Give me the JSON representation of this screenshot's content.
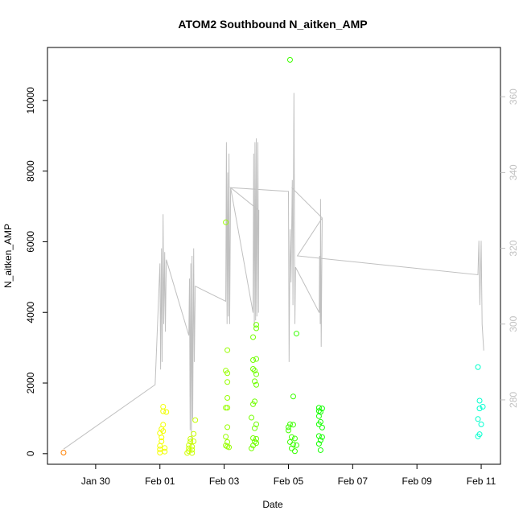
{
  "chart_data": {
    "type": "scatter",
    "title": "ATOM2 Southbound N_aitken_AMP",
    "xlabel": "Date",
    "ylabel": "N_aitken_AMP",
    "x_tick_labels": [
      "Jan 30",
      "Feb 01",
      "Feb 03",
      "Feb 05",
      "Feb 07",
      "Feb 09",
      "Feb 11"
    ],
    "x_tick_values": [
      30,
      32,
      34,
      36,
      38,
      40,
      42
    ],
    "xlim": [
      28.5,
      42.6
    ],
    "y_ticks": [
      0,
      2000,
      4000,
      6000,
      8000,
      10000
    ],
    "ylim": [
      -300,
      11500
    ],
    "y2_ticks": [
      280,
      300,
      320,
      340,
      360
    ],
    "y2lim": [
      263,
      373
    ],
    "y2_color": "#c0c0c0",
    "series": [
      {
        "marker": "open-circle",
        "color_scale": "rainbow by time",
        "points": [
          {
            "x": 29.0,
            "y": 30,
            "c": "#ff8000"
          },
          {
            "x": 32.0,
            "y": 30
          },
          {
            "x": 32.0,
            "y": 120
          },
          {
            "x": 32.0,
            "y": 220
          },
          {
            "x": 32.05,
            "y": 350
          },
          {
            "x": 32.05,
            "y": 460
          },
          {
            "x": 32.0,
            "y": 580
          },
          {
            "x": 32.1,
            "y": 640
          },
          {
            "x": 32.05,
            "y": 700
          },
          {
            "x": 32.1,
            "y": 820
          },
          {
            "x": 32.1,
            "y": 1200
          },
          {
            "x": 32.1,
            "y": 1330
          },
          {
            "x": 32.15,
            "y": 60
          },
          {
            "x": 32.15,
            "y": 160
          },
          {
            "x": 32.2,
            "y": 1180
          },
          {
            "x": 32.85,
            "y": 20
          },
          {
            "x": 32.9,
            "y": 70
          },
          {
            "x": 32.9,
            "y": 150
          },
          {
            "x": 32.9,
            "y": 240
          },
          {
            "x": 32.95,
            "y": 340
          },
          {
            "x": 32.95,
            "y": 420
          },
          {
            "x": 33.0,
            "y": 20
          },
          {
            "x": 33.0,
            "y": 110
          },
          {
            "x": 33.0,
            "y": 200
          },
          {
            "x": 33.05,
            "y": 350
          },
          {
            "x": 33.05,
            "y": 560
          },
          {
            "x": 33.1,
            "y": 950
          },
          {
            "x": 34.05,
            "y": 6550
          },
          {
            "x": 34.1,
            "y": 2930
          },
          {
            "x": 34.05,
            "y": 2350
          },
          {
            "x": 34.1,
            "y": 2280
          },
          {
            "x": 34.1,
            "y": 2030
          },
          {
            "x": 34.1,
            "y": 1580
          },
          {
            "x": 34.05,
            "y": 1300
          },
          {
            "x": 34.1,
            "y": 1300
          },
          {
            "x": 34.1,
            "y": 750
          },
          {
            "x": 34.05,
            "y": 480
          },
          {
            "x": 34.1,
            "y": 330
          },
          {
            "x": 34.05,
            "y": 230
          },
          {
            "x": 34.1,
            "y": 200
          },
          {
            "x": 34.15,
            "y": 180
          },
          {
            "x": 34.9,
            "y": 3300
          },
          {
            "x": 35.0,
            "y": 3650
          },
          {
            "x": 35.0,
            "y": 3550
          },
          {
            "x": 34.9,
            "y": 2650
          },
          {
            "x": 35.0,
            "y": 2680
          },
          {
            "x": 34.9,
            "y": 2400
          },
          {
            "x": 34.95,
            "y": 2350
          },
          {
            "x": 35.0,
            "y": 2250
          },
          {
            "x": 34.95,
            "y": 2050
          },
          {
            "x": 35.0,
            "y": 1950
          },
          {
            "x": 34.95,
            "y": 1480
          },
          {
            "x": 34.9,
            "y": 1400
          },
          {
            "x": 34.85,
            "y": 1020
          },
          {
            "x": 35.0,
            "y": 830
          },
          {
            "x": 34.95,
            "y": 720
          },
          {
            "x": 34.9,
            "y": 440
          },
          {
            "x": 35.0,
            "y": 420
          },
          {
            "x": 34.95,
            "y": 340
          },
          {
            "x": 35.0,
            "y": 300
          },
          {
            "x": 34.9,
            "y": 230
          },
          {
            "x": 34.85,
            "y": 150
          },
          {
            "x": 36.05,
            "y": 11150
          },
          {
            "x": 36.25,
            "y": 3400
          },
          {
            "x": 36.15,
            "y": 1620
          },
          {
            "x": 36.0,
            "y": 750
          },
          {
            "x": 36.05,
            "y": 830
          },
          {
            "x": 36.15,
            "y": 820
          },
          {
            "x": 36.0,
            "y": 660
          },
          {
            "x": 36.1,
            "y": 470
          },
          {
            "x": 36.2,
            "y": 430
          },
          {
            "x": 36.05,
            "y": 330
          },
          {
            "x": 36.15,
            "y": 260
          },
          {
            "x": 36.25,
            "y": 240
          },
          {
            "x": 36.1,
            "y": 150
          },
          {
            "x": 36.2,
            "y": 70
          },
          {
            "x": 36.95,
            "y": 1300
          },
          {
            "x": 37.05,
            "y": 1280
          },
          {
            "x": 36.95,
            "y": 1210
          },
          {
            "x": 37.0,
            "y": 1180
          },
          {
            "x": 36.95,
            "y": 1060
          },
          {
            "x": 37.0,
            "y": 900
          },
          {
            "x": 36.95,
            "y": 830
          },
          {
            "x": 37.05,
            "y": 740
          },
          {
            "x": 36.95,
            "y": 500
          },
          {
            "x": 37.05,
            "y": 470
          },
          {
            "x": 37.0,
            "y": 380
          },
          {
            "x": 36.95,
            "y": 280
          },
          {
            "x": 37.0,
            "y": 100
          },
          {
            "x": 41.9,
            "y": 2450
          },
          {
            "x": 41.95,
            "y": 1500
          },
          {
            "x": 41.95,
            "y": 1280
          },
          {
            "x": 42.05,
            "y": 1330
          },
          {
            "x": 41.9,
            "y": 980
          },
          {
            "x": 42.0,
            "y": 830
          },
          {
            "x": 41.95,
            "y": 550
          },
          {
            "x": 41.9,
            "y": 490
          }
        ]
      },
      {
        "name": "",
        "axis": "right",
        "color": "#c0c0c0",
        "style": "line",
        "points": [
          {
            "x": 29.0,
            "y": 267
          },
          {
            "x": 31.85,
            "y": 284
          },
          {
            "x": 32.0,
            "y": 316
          },
          {
            "x": 32.02,
            "y": 288
          },
          {
            "x": 32.05,
            "y": 320
          },
          {
            "x": 32.07,
            "y": 290
          },
          {
            "x": 32.1,
            "y": 329
          },
          {
            "x": 32.12,
            "y": 300
          },
          {
            "x": 32.15,
            "y": 319
          },
          {
            "x": 32.17,
            "y": 298
          },
          {
            "x": 32.2,
            "y": 317
          },
          {
            "x": 32.9,
            "y": 297
          },
          {
            "x": 32.92,
            "y": 312
          },
          {
            "x": 32.94,
            "y": 272
          },
          {
            "x": 32.96,
            "y": 316
          },
          {
            "x": 32.98,
            "y": 268
          },
          {
            "x": 33.0,
            "y": 318
          },
          {
            "x": 33.02,
            "y": 275
          },
          {
            "x": 33.05,
            "y": 320
          },
          {
            "x": 33.07,
            "y": 290
          },
          {
            "x": 33.1,
            "y": 310
          },
          {
            "x": 34.05,
            "y": 306
          },
          {
            "x": 34.07,
            "y": 348
          },
          {
            "x": 34.09,
            "y": 300
          },
          {
            "x": 34.11,
            "y": 340
          },
          {
            "x": 34.13,
            "y": 302
          },
          {
            "x": 34.15,
            "y": 345
          },
          {
            "x": 34.17,
            "y": 300
          },
          {
            "x": 34.2,
            "y": 336
          },
          {
            "x": 34.9,
            "y": 303
          },
          {
            "x": 34.92,
            "y": 345
          },
          {
            "x": 34.94,
            "y": 299
          },
          {
            "x": 34.96,
            "y": 348
          },
          {
            "x": 34.98,
            "y": 301
          },
          {
            "x": 35.0,
            "y": 349
          },
          {
            "x": 35.02,
            "y": 302
          },
          {
            "x": 35.05,
            "y": 348
          },
          {
            "x": 35.07,
            "y": 303
          },
          {
            "x": 35.08,
            "y": 330
          },
          {
            "x": 34.2,
            "y": 336
          },
          {
            "x": 36.0,
            "y": 335
          },
          {
            "x": 36.02,
            "y": 290
          },
          {
            "x": 36.05,
            "y": 325
          },
          {
            "x": 36.08,
            "y": 311
          },
          {
            "x": 36.12,
            "y": 338
          },
          {
            "x": 36.14,
            "y": 305
          },
          {
            "x": 36.17,
            "y": 361
          },
          {
            "x": 36.2,
            "y": 300
          },
          {
            "x": 36.22,
            "y": 315
          },
          {
            "x": 36.96,
            "y": 303
          },
          {
            "x": 36.97,
            "y": 318
          },
          {
            "x": 36.99,
            "y": 300
          },
          {
            "x": 37.0,
            "y": 333
          },
          {
            "x": 37.02,
            "y": 294
          },
          {
            "x": 37.05,
            "y": 328
          },
          {
            "x": 36.1,
            "y": 336
          },
          {
            "x": 37.05,
            "y": 328
          },
          {
            "x": 36.28,
            "y": 318
          },
          {
            "x": 41.9,
            "y": 313
          },
          {
            "x": 41.93,
            "y": 322
          },
          {
            "x": 41.96,
            "y": 305
          },
          {
            "x": 42.0,
            "y": 322
          },
          {
            "x": 42.03,
            "y": 300
          },
          {
            "x": 42.08,
            "y": 293
          }
        ]
      }
    ]
  }
}
